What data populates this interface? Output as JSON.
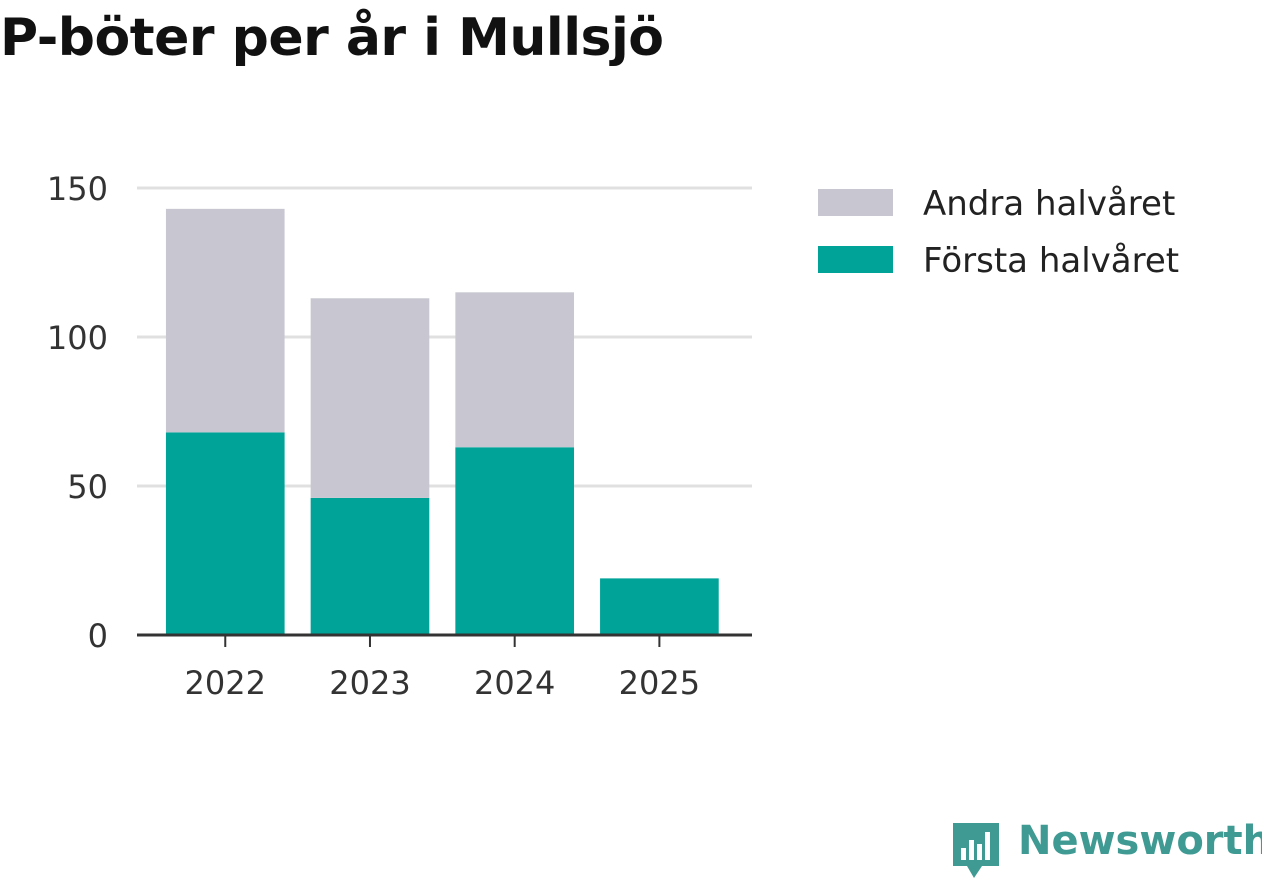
{
  "chart_data": {
    "type": "bar",
    "stacked": true,
    "title": "P-böter per år i Mullsjö",
    "categories": [
      "2022",
      "2023",
      "2024",
      "2025"
    ],
    "series": [
      {
        "name": "Första halvåret",
        "color": "#00a398",
        "values": [
          68,
          46,
          63,
          19
        ]
      },
      {
        "name": "Andra halvåret",
        "color": "#c8c7d1",
        "values": [
          75,
          67,
          52,
          0
        ]
      }
    ],
    "legend_order": [
      "Andra halvåret",
      "Första halvåret"
    ],
    "yticks": [
      0,
      50,
      100,
      150
    ],
    "ylim": [
      0,
      150
    ],
    "xlabel": "",
    "ylabel": "",
    "grid": true,
    "legend_position": "right"
  },
  "brand": {
    "name": "Newsworthy",
    "color": "#3f9a93"
  }
}
